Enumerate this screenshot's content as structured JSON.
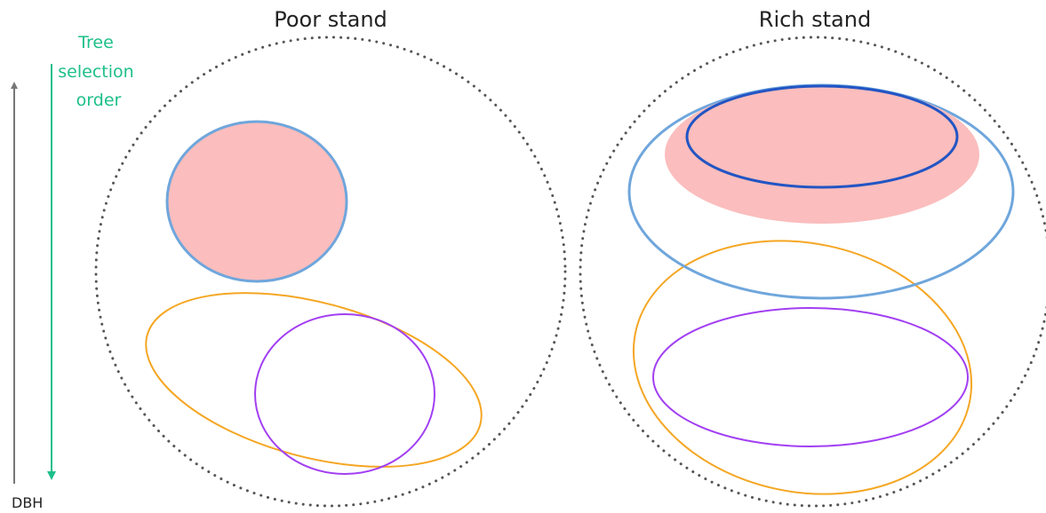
{
  "panels": {
    "poor": {
      "title": "Poor stand"
    },
    "rich": {
      "title": "Rich stand"
    }
  },
  "axis": {
    "dbh_label": "DBH",
    "selection_label_lines": [
      "Tree",
      "selection",
      "order"
    ]
  },
  "colors": {
    "dotted_circle": "#555555",
    "pink_fill": "#fbbdbd",
    "light_blue": "#6fa6dc",
    "dark_blue": "#2255c4",
    "orange": "#f5a623",
    "purple": "#a23ff2",
    "green_arrow": "#1dbf8a",
    "gray_arrow": "#777777"
  }
}
